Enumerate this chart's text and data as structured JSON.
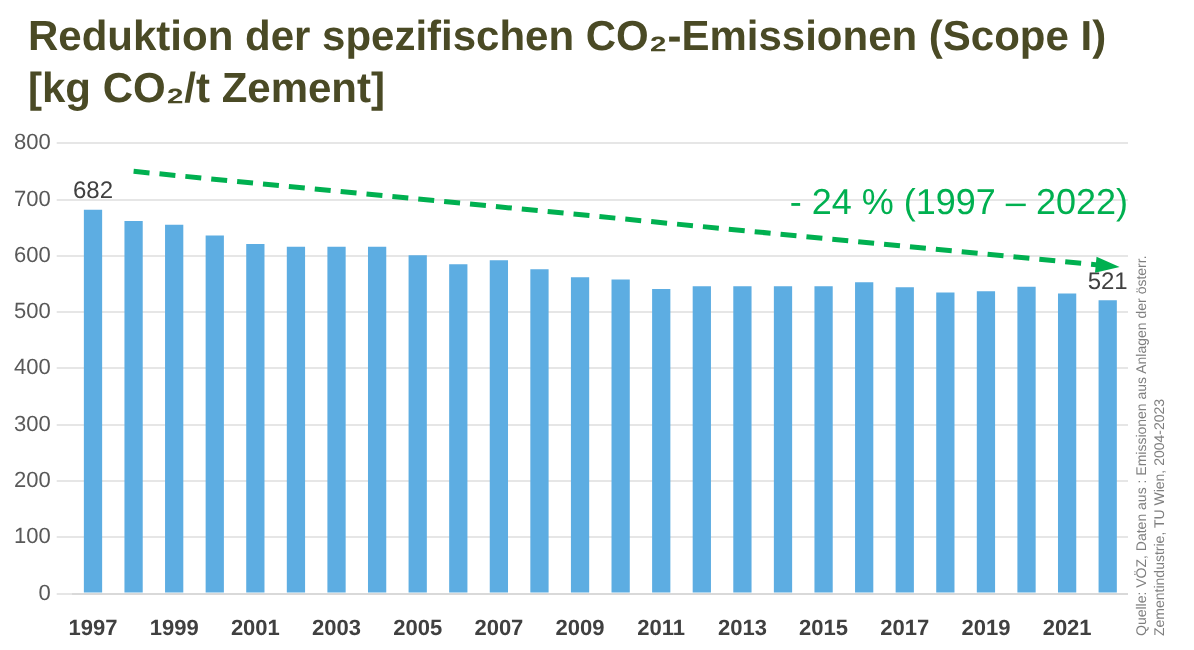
{
  "chart_data": {
    "type": "bar",
    "title": "Reduktion der spezifischen CO₂-Emissionen (Scope I)",
    "subtitle": "[kg CO₂/t Zement]",
    "categories": [
      "1997",
      null,
      "1999",
      null,
      "2001",
      null,
      "2003",
      null,
      "2005",
      null,
      "2007",
      null,
      "2009",
      null,
      "2011",
      null,
      "2013",
      null,
      "2015",
      null,
      "2017",
      null,
      "2019",
      null,
      "2021",
      null
    ],
    "series": [
      {
        "color": "#5dade2",
        "values": [
          682,
          662,
          655,
          636,
          621,
          616,
          616,
          616,
          601,
          585,
          592,
          576,
          562,
          558,
          541,
          546,
          546,
          546,
          546,
          553,
          544,
          535,
          537,
          545,
          533,
          521
        ],
        "value_labels": [
          "682",
          null,
          null,
          null,
          null,
          null,
          null,
          null,
          null,
          null,
          null,
          null,
          null,
          null,
          null,
          null,
          null,
          null,
          null,
          null,
          null,
          null,
          null,
          null,
          null,
          "521"
        ]
      },
      {
        "type": "line",
        "color": "#00b050",
        "line_style": "dashed",
        "values": [
          null,
          750,
          null,
          null,
          null,
          null,
          null,
          null,
          null,
          null,
          null,
          null,
          null,
          null,
          null,
          null,
          null,
          null,
          null,
          null,
          null,
          null,
          null,
          null,
          null,
          582
        ]
      }
    ],
    "annotations": [
      "- 24 % (1997 – 2022)",
      "Quelle: VÖZ, Daten aus : Emissionen aus Anlagen der österr. Zementindustrie, TU Wien, 2004-2023"
    ],
    "ylim": [
      0,
      800
    ],
    "yticks": [
      0,
      100,
      200,
      300,
      400,
      500,
      600,
      700,
      800
    ],
    "grid": "y",
    "legend": false
  }
}
